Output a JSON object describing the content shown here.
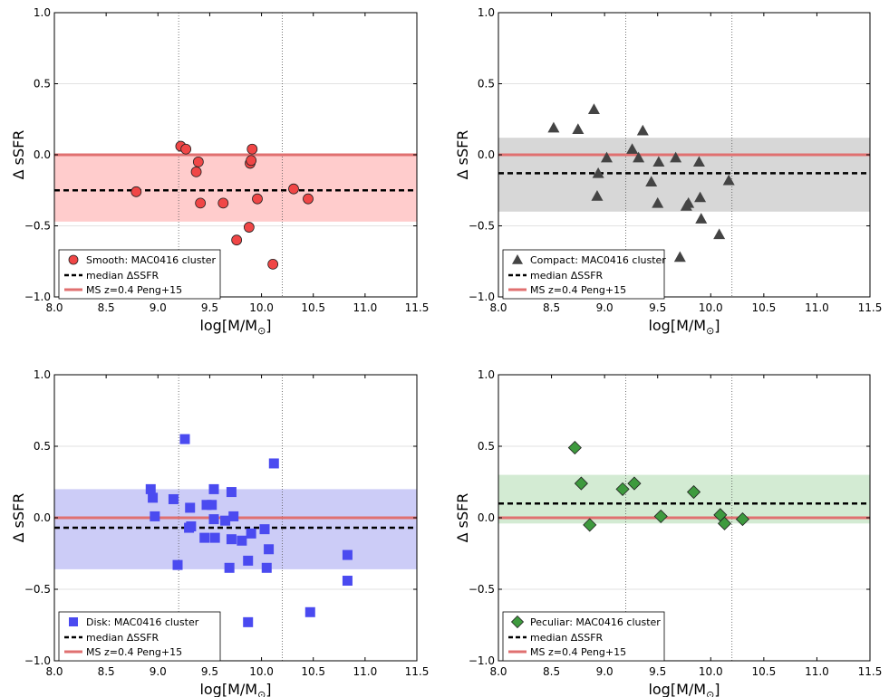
{
  "colors": {
    "ms_line": "#e07070",
    "median_line": "#000000",
    "grid": "#d9d9d9",
    "vline": "#555555",
    "frame": "#000000"
  },
  "axis_labels": {
    "x_main": "log[M/M",
    "x_sub": "⊙",
    "x_close": "]",
    "y": "Δ sSFR"
  },
  "legend_common": {
    "median": "median ΔSSFR",
    "ms": "MS z=0.4 Peng+15"
  },
  "chart_data": [
    {
      "type": "scatter",
      "marker": "circle",
      "color": "#f04646",
      "band_color": "#ff9999",
      "legend_label": "Smooth: MAC0416 cluster",
      "xlim": [
        8.0,
        11.5
      ],
      "ylim": [
        -1.0,
        1.0
      ],
      "xticks": [
        "8.0",
        "8.5",
        "9.0",
        "9.5",
        "10.0",
        "10.5",
        "11.0",
        "11.5"
      ],
      "yticks": [
        "1.0",
        "0.5",
        "0.0",
        "−0.5",
        "−1.0"
      ],
      "grid": "horizontal",
      "legend_position": "lower-left",
      "vlines": [
        9.2,
        10.2
      ],
      "ms_y": 0.0,
      "median_y": -0.25,
      "band": [
        -0.47,
        0.0
      ],
      "x": [
        8.79,
        9.22,
        9.27,
        9.37,
        9.39,
        9.41,
        9.63,
        9.76,
        9.88,
        9.89,
        9.9,
        9.91,
        9.96,
        10.11,
        10.31,
        10.45
      ],
      "y": [
        -0.26,
        0.06,
        0.04,
        -0.12,
        -0.05,
        -0.34,
        -0.34,
        -0.6,
        -0.51,
        -0.06,
        -0.04,
        0.04,
        -0.31,
        -0.77,
        -0.24,
        -0.31
      ]
    },
    {
      "type": "scatter",
      "marker": "triangle",
      "color": "#444444",
      "band_color": "#b0b0b0",
      "legend_label": "Compact: MAC0416 cluster",
      "xlim": [
        8.0,
        11.5
      ],
      "ylim": [
        -1.0,
        1.0
      ],
      "xticks": [
        "8.0",
        "8.5",
        "9.0",
        "9.5",
        "10.0",
        "10.5",
        "11.0",
        "11.5"
      ],
      "yticks": [
        "1.0",
        "0.5",
        "0.0",
        "−0.5",
        "−1.0"
      ],
      "grid": "horizontal",
      "legend_position": "lower-left",
      "vlines": [
        9.2,
        10.2
      ],
      "ms_y": 0.0,
      "median_y": -0.13,
      "band": [
        -0.4,
        0.12
      ],
      "x": [
        8.52,
        8.75,
        8.9,
        8.93,
        8.94,
        9.02,
        9.26,
        9.32,
        9.36,
        9.44,
        9.5,
        9.51,
        9.67,
        9.77,
        9.79,
        9.89,
        9.9,
        9.91,
        10.08,
        10.17,
        9.71
      ],
      "y": [
        0.19,
        0.18,
        0.32,
        -0.29,
        -0.13,
        -0.02,
        0.04,
        -0.02,
        0.17,
        -0.19,
        -0.34,
        -0.05,
        -0.02,
        -0.36,
        -0.34,
        -0.05,
        -0.3,
        -0.45,
        -0.56,
        -0.18,
        -0.72
      ]
    },
    {
      "type": "scatter",
      "marker": "square",
      "color": "#4a4af0",
      "band_color": "#9999f0",
      "legend_label": "Disk: MAC0416 cluster",
      "xlim": [
        8.0,
        11.5
      ],
      "ylim": [
        -1.0,
        1.0
      ],
      "xticks": [
        "8.0",
        "8.5",
        "9.0",
        "9.5",
        "10.0",
        "10.5",
        "11.0",
        "11.5"
      ],
      "yticks": [
        "1.0",
        "0.5",
        "0.0",
        "−0.5",
        "−1.0"
      ],
      "grid": "horizontal",
      "legend_position": "lower-left",
      "vlines": [
        9.2,
        10.2
      ],
      "ms_y": 0.0,
      "median_y": -0.07,
      "band": [
        -0.36,
        0.2
      ],
      "x": [
        8.93,
        8.95,
        8.97,
        9.15,
        9.19,
        9.26,
        9.3,
        9.31,
        9.32,
        9.45,
        9.47,
        9.52,
        9.54,
        9.54,
        9.55,
        9.65,
        9.69,
        9.71,
        9.71,
        9.73,
        9.81,
        9.87,
        9.87,
        9.9,
        10.03,
        10.05,
        10.07,
        10.12,
        10.47,
        10.83,
        10.83
      ],
      "y": [
        0.2,
        0.14,
        0.01,
        0.13,
        -0.33,
        0.55,
        -0.07,
        0.07,
        -0.06,
        -0.14,
        0.09,
        0.09,
        0.2,
        -0.01,
        -0.14,
        -0.02,
        -0.35,
        -0.15,
        0.18,
        0.01,
        -0.16,
        -0.3,
        -0.73,
        -0.11,
        -0.08,
        -0.35,
        -0.22,
        0.38,
        -0.66,
        -0.44,
        -0.26
      ]
    },
    {
      "type": "scatter",
      "marker": "diamond",
      "color": "#3e9a3e",
      "band_color": "#a8d8a8",
      "legend_label": "Peculiar: MAC0416 cluster",
      "xlim": [
        8.0,
        11.5
      ],
      "ylim": [
        -1.0,
        1.0
      ],
      "xticks": [
        "8.0",
        "8.5",
        "9.0",
        "9.5",
        "10.0",
        "10.5",
        "11.0",
        "11.5"
      ],
      "yticks": [
        "1.0",
        "0.5",
        "0.0",
        "−0.5",
        "−1.0"
      ],
      "grid": "horizontal",
      "legend_position": "lower-left",
      "vlines": [
        9.2,
        10.2
      ],
      "ms_y": 0.0,
      "median_y": 0.1,
      "band": [
        -0.04,
        0.3
      ],
      "x": [
        8.72,
        8.78,
        8.86,
        9.17,
        9.28,
        9.53,
        9.84,
        10.09,
        10.13,
        10.3
      ],
      "y": [
        0.49,
        0.24,
        -0.05,
        0.2,
        0.24,
        0.01,
        0.18,
        0.02,
        -0.04,
        -0.01
      ]
    }
  ]
}
